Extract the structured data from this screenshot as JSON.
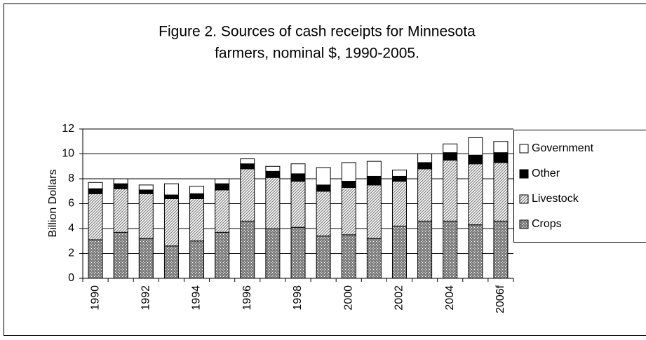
{
  "chart_data": {
    "type": "stacked_bar",
    "title": "Figure 2. Sources of cash receipts for Minnesota",
    "subtitle": "farmers, nominal $, 1990-2005.",
    "y_label": "Billion Dollars",
    "categories": [
      "1990",
      null,
      "1992",
      null,
      "1994",
      null,
      "1996",
      null,
      "1998",
      null,
      "2000",
      null,
      "2002",
      null,
      "2004",
      null,
      "2006f"
    ],
    "series": [
      {
        "name": "Crops",
        "color": "#7f7f7f",
        "pattern": "crosshatch",
        "values": [
          3.1,
          3.7,
          3.2,
          2.6,
          3.0,
          3.7,
          4.6,
          4.0,
          4.1,
          3.4,
          3.5,
          3.2,
          4.2,
          4.6,
          4.6,
          4.3,
          4.6
        ]
      },
      {
        "name": "Livestock",
        "color": "#808080",
        "pattern": "diagonal",
        "values": [
          3.7,
          3.5,
          3.6,
          3.8,
          3.4,
          3.4,
          4.2,
          4.1,
          3.7,
          3.6,
          3.8,
          4.3,
          3.6,
          4.2,
          4.9,
          4.9,
          4.7
        ]
      },
      {
        "name": "Other",
        "color": "#000000",
        "pattern": "solid",
        "values": [
          0.4,
          0.4,
          0.3,
          0.3,
          0.4,
          0.5,
          0.4,
          0.5,
          0.6,
          0.5,
          0.5,
          0.7,
          0.4,
          0.5,
          0.6,
          0.7,
          0.8
        ]
      },
      {
        "name": "Government",
        "color": "#ffffff",
        "pattern": "solid",
        "values": [
          0.5,
          0.4,
          0.4,
          0.9,
          0.6,
          0.4,
          0.4,
          0.4,
          0.8,
          1.4,
          1.5,
          1.2,
          0.5,
          0.7,
          0.7,
          1.4,
          0.9
        ]
      }
    ],
    "ylim": [
      0,
      12
    ],
    "yticks": [
      0,
      2,
      4,
      6,
      8,
      10,
      12
    ],
    "grid": true,
    "legend": "right"
  }
}
